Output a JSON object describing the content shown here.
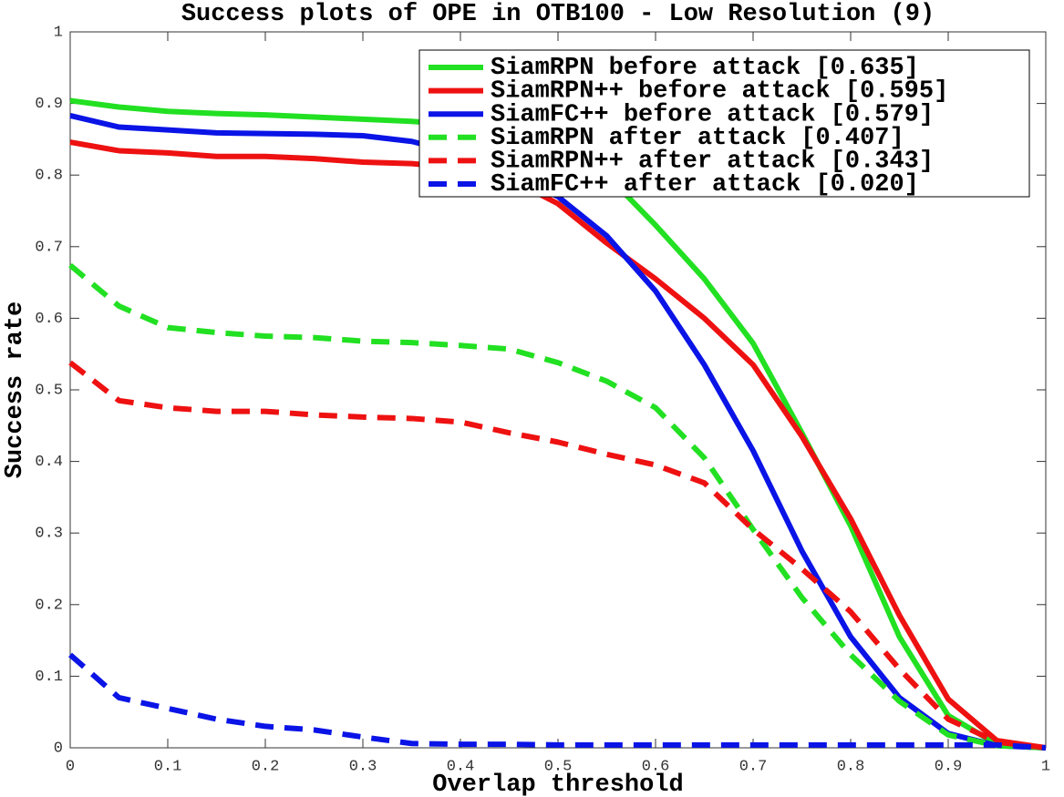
{
  "chart_data": {
    "type": "line",
    "title": "Success plots of OPE in OTB100 - Low Resolution (9)",
    "xlabel": "Overlap threshold",
    "ylabel": "Success rate",
    "x": [
      0,
      0.05,
      0.1,
      0.15,
      0.2,
      0.25,
      0.3,
      0.35,
      0.4,
      0.45,
      0.5,
      0.55,
      0.6,
      0.65,
      0.7,
      0.75,
      0.8,
      0.85,
      0.9,
      0.95,
      1
    ],
    "xlim": [
      0,
      1
    ],
    "ylim": [
      0,
      1
    ],
    "xticks": [
      0,
      0.1,
      0.2,
      0.3,
      0.4,
      0.5,
      0.6,
      0.7,
      0.8,
      0.9,
      1
    ],
    "yticks": [
      0,
      0.1,
      0.2,
      0.3,
      0.4,
      0.5,
      0.6,
      0.7,
      0.8,
      0.9,
      1
    ],
    "grid": false,
    "legend_location": "upper right",
    "series": [
      {
        "name": "SiamRPN before attack [0.635]",
        "color": "#22e022",
        "linestyle": "solid",
        "values": [
          0.904,
          0.895,
          0.889,
          0.886,
          0.884,
          0.881,
          0.878,
          0.875,
          0.87,
          0.86,
          0.84,
          0.8,
          0.73,
          0.655,
          0.565,
          0.44,
          0.31,
          0.155,
          0.045,
          0.005,
          0
        ]
      },
      {
        "name": "SiamRPN++ before attack [0.595]",
        "color": "#ee1111",
        "linestyle": "solid",
        "values": [
          0.846,
          0.834,
          0.831,
          0.826,
          0.826,
          0.823,
          0.818,
          0.816,
          0.81,
          0.795,
          0.76,
          0.705,
          0.655,
          0.6,
          0.535,
          0.435,
          0.32,
          0.185,
          0.068,
          0.01,
          0
        ]
      },
      {
        "name": "SiamFC++ before attack [0.579]",
        "color": "#0a14e6",
        "linestyle": "solid",
        "values": [
          0.883,
          0.867,
          0.863,
          0.859,
          0.858,
          0.857,
          0.855,
          0.847,
          0.83,
          0.8,
          0.77,
          0.715,
          0.638,
          0.535,
          0.415,
          0.275,
          0.155,
          0.07,
          0.02,
          0.003,
          0
        ]
      },
      {
        "name": "SiamRPN after attack [0.407]",
        "color": "#22e022",
        "linestyle": "dashed",
        "values": [
          0.674,
          0.617,
          0.587,
          0.58,
          0.575,
          0.573,
          0.568,
          0.566,
          0.562,
          0.557,
          0.538,
          0.512,
          0.475,
          0.405,
          0.305,
          0.21,
          0.13,
          0.065,
          0.018,
          0.003,
          0
        ]
      },
      {
        "name": "SiamRPN++ after attack [0.343]",
        "color": "#ee1111",
        "linestyle": "dashed",
        "values": [
          0.538,
          0.485,
          0.475,
          0.47,
          0.47,
          0.465,
          0.462,
          0.46,
          0.455,
          0.44,
          0.427,
          0.41,
          0.395,
          0.37,
          0.305,
          0.25,
          0.19,
          0.11,
          0.04,
          0.008,
          0
        ]
      },
      {
        "name": "SiamFC++ after attack [0.020]",
        "color": "#0a14e6",
        "linestyle": "dashed",
        "values": [
          0.13,
          0.07,
          0.055,
          0.04,
          0.03,
          0.025,
          0.015,
          0.006,
          0.005,
          0.005,
          0.004,
          0.004,
          0.004,
          0.004,
          0.004,
          0.004,
          0.004,
          0.004,
          0.004,
          0.004,
          0
        ]
      }
    ]
  }
}
